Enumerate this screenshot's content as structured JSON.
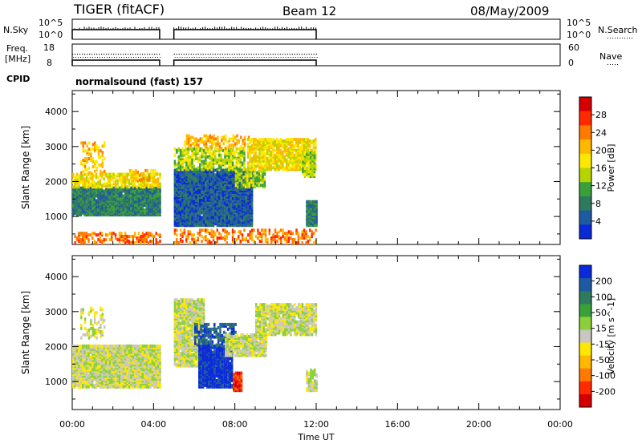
{
  "header": {
    "title": "TIGER (fitACF)",
    "beam": "Beam 12",
    "date": "08/May/2009"
  },
  "summary": {
    "nsky_label": "N.Sky",
    "freq_label_line1": "Freq.",
    "freq_label_line2": "[MHz]",
    "cpid_label": "CPID",
    "nsearch_label": "N.Search",
    "nave_label": "Nave",
    "nsky_ticks": [
      "10^5",
      "10^0"
    ],
    "nsearch_ticks": [
      "10^5",
      "10^0"
    ],
    "freq_ticks": [
      "18",
      "8"
    ],
    "nave_ticks": [
      "60",
      "0"
    ],
    "cpid_text": "normalsound (fast) 157"
  },
  "time_axis": {
    "label": "Time UT",
    "ticks": [
      "00:00",
      "04:00",
      "08:00",
      "12:00",
      "16:00",
      "20:00",
      "00:00"
    ]
  },
  "chart_data": [
    {
      "type": "heatmap",
      "name": "power-panel",
      "ylabel": "Slant Range [km]",
      "yticks": [
        1000,
        2000,
        3000,
        4000
      ],
      "ylim": [
        200,
        4600
      ],
      "xlim_hours": [
        0,
        24
      ],
      "colorbar": {
        "label": "Power [dB]",
        "ticks": [
          "28",
          "24",
          "20",
          "16",
          "12",
          "8",
          "4"
        ],
        "colors": [
          "#d40000",
          "#ff2a00",
          "#ff7a00",
          "#ffb800",
          "#ffe800",
          "#b6d400",
          "#3aa03a",
          "#2f7a5e",
          "#1f5aa0",
          "#0a2ad8"
        ]
      },
      "data_gaps_hours": [
        [
          4.3,
          5.0
        ]
      ],
      "regions": [
        {
          "t0": 0.0,
          "t1": 4.3,
          "r0": 1000,
          "r1": 1800,
          "level": 7,
          "density": 0.95
        },
        {
          "t0": 0.0,
          "t1": 4.3,
          "r0": 1800,
          "r1": 2200,
          "level": 4,
          "density": 0.6
        },
        {
          "t0": 0.4,
          "t1": 1.6,
          "r0": 2200,
          "r1": 3100,
          "level": 3,
          "density": 0.35
        },
        {
          "t0": 2.8,
          "t1": 4.2,
          "r0": 1950,
          "r1": 2300,
          "level": 3,
          "density": 0.5
        },
        {
          "t0": 0.0,
          "t1": 4.3,
          "r0": 200,
          "r1": 500,
          "level": 2,
          "density": 0.4
        },
        {
          "t0": 5.0,
          "t1": 8.8,
          "r0": 700,
          "r1": 2300,
          "level": 8,
          "density": 0.95
        },
        {
          "t0": 5.0,
          "t1": 8.5,
          "r0": 2300,
          "r1": 2900,
          "level": 5,
          "density": 0.6
        },
        {
          "t0": 5.5,
          "t1": 8.7,
          "r0": 2900,
          "r1": 3300,
          "level": 3,
          "density": 0.4
        },
        {
          "t0": 8.0,
          "t1": 9.5,
          "r0": 1800,
          "r1": 2300,
          "level": 5,
          "density": 0.7
        },
        {
          "t0": 8.6,
          "t1": 12.0,
          "r0": 2300,
          "r1": 3200,
          "level": 4,
          "density": 0.75
        },
        {
          "t0": 11.5,
          "t1": 12.0,
          "r0": 700,
          "r1": 1400,
          "level": 7,
          "density": 0.9
        },
        {
          "t0": 11.3,
          "t1": 11.9,
          "r0": 2100,
          "r1": 2800,
          "level": 5,
          "density": 0.8
        },
        {
          "t0": 5.0,
          "t1": 12.0,
          "r0": 200,
          "r1": 600,
          "level": 2,
          "density": 0.35
        }
      ]
    },
    {
      "type": "heatmap",
      "name": "velocity-panel",
      "ylabel": "Slant Range [km]",
      "yticks": [
        1000,
        2000,
        3000,
        4000
      ],
      "ylim": [
        200,
        4600
      ],
      "xlim_hours": [
        0,
        24
      ],
      "colorbar": {
        "label": "Velocity [m s^-1]",
        "ticks": [
          "200",
          "100",
          "50",
          "15",
          "-15",
          "-50",
          "-100",
          "-200"
        ],
        "colors": [
          "#0a2ad8",
          "#1f5aa0",
          "#2f7a5e",
          "#3aa03a",
          "#8ccf3a",
          "#c8c8c0",
          "#ffe800",
          "#ffb800",
          "#ff7a00",
          "#ff2a00",
          "#d40000"
        ]
      },
      "data_gaps_hours": [
        [
          4.3,
          5.0
        ]
      ],
      "regions": [
        {
          "t0": 0.0,
          "t1": 4.3,
          "r0": 800,
          "r1": 2000,
          "level": 5,
          "density": 0.95
        },
        {
          "t0": 0.4,
          "t1": 1.6,
          "r0": 2200,
          "r1": 3100,
          "level": 5,
          "density": 0.3
        },
        {
          "t0": 5.0,
          "t1": 6.5,
          "r0": 1400,
          "r1": 3300,
          "level": 5,
          "density": 0.9
        },
        {
          "t0": 6.2,
          "t1": 7.9,
          "r0": 800,
          "r1": 2000,
          "level": 0,
          "density": 0.85
        },
        {
          "t0": 6.0,
          "t1": 8.0,
          "r0": 2000,
          "r1": 2600,
          "level": 1,
          "density": 0.5
        },
        {
          "t0": 7.9,
          "t1": 8.3,
          "r0": 700,
          "r1": 1200,
          "level": 9,
          "density": 0.9
        },
        {
          "t0": 7.5,
          "t1": 9.5,
          "r0": 1700,
          "r1": 2300,
          "level": 5,
          "density": 0.8
        },
        {
          "t0": 9.0,
          "t1": 12.0,
          "r0": 2300,
          "r1": 3200,
          "level": 5,
          "density": 0.8
        },
        {
          "t0": 11.5,
          "t1": 12.0,
          "r0": 700,
          "r1": 1300,
          "level": 5,
          "density": 0.6
        }
      ]
    }
  ]
}
